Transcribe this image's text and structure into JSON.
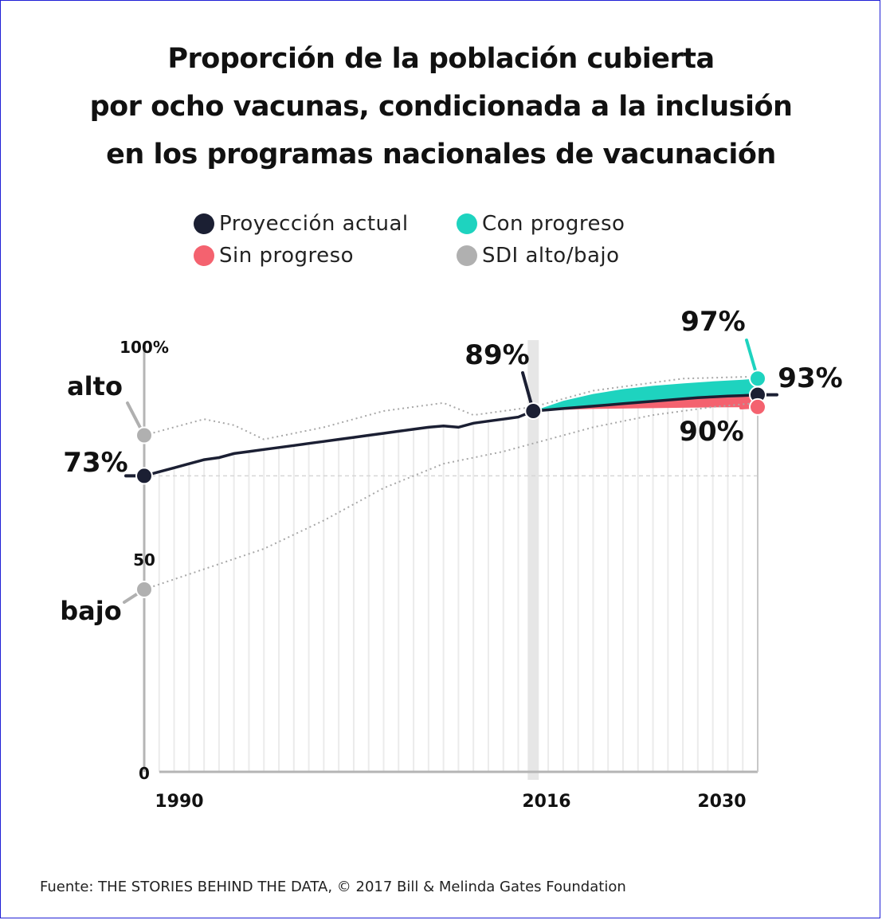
{
  "title_lines": [
    "Proporción de la población cubierta",
    "por ocho vacunas, condicionada a la inclusión",
    "en los programas nacionales de vacunación"
  ],
  "source": "Fuente: THE STORIES BEHIND THE DATA, © 2017 Bill & Melinda Gates Foundation",
  "colors": {
    "current": "#1b1f33",
    "progress": "#1ed3bf",
    "no_progress": "#f4626f",
    "sdi": "#b0b0b0"
  },
  "chart_data": {
    "type": "line",
    "title": "Proporción de la población cubierta por ocho vacunas, condicionada a la inclusión en los programas nacionales de vacunación",
    "xlabel": "",
    "ylabel": "",
    "xlim": [
      1990,
      2031
    ],
    "ylim": [
      0,
      100
    ],
    "x_ticks": [
      "1990",
      "2016",
      "2030"
    ],
    "y_ticks": [
      "0",
      "50",
      "100%"
    ],
    "legend": {
      "placement": "top",
      "entries": [
        "Proyección actual",
        "Con progreso",
        "Sin progreso",
        "SDI alto/bajo"
      ]
    },
    "series": [
      {
        "name": "Proyección actual",
        "x": [
          1990,
          1991,
          1992,
          1993,
          1994,
          1995,
          1996,
          1997,
          1998,
          1999,
          2000,
          2001,
          2002,
          2003,
          2004,
          2005,
          2006,
          2007,
          2008,
          2009,
          2010,
          2011,
          2012,
          2013,
          2014,
          2015,
          2016,
          2017,
          2018,
          2019,
          2020,
          2021,
          2022,
          2023,
          2024,
          2025,
          2026,
          2027,
          2028,
          2029,
          2030,
          2031
        ],
        "values": [
          73,
          74,
          75,
          76,
          77,
          77.5,
          78.5,
          79,
          79.5,
          80,
          80.5,
          81,
          81.5,
          82,
          82.5,
          83,
          83.5,
          84,
          84.5,
          85,
          85.3,
          85,
          86,
          86.5,
          87,
          87.5,
          89,
          89.3,
          89.6,
          89.9,
          90.2,
          90.5,
          90.8,
          91.1,
          91.4,
          91.7,
          92,
          92.3,
          92.5,
          92.7,
          92.8,
          93
        ]
      },
      {
        "name": "Con progreso",
        "x": [
          2016,
          2018,
          2020,
          2022,
          2024,
          2026,
          2028,
          2030,
          2031
        ],
        "values": [
          89,
          91.5,
          93.2,
          94.4,
          95.2,
          95.8,
          96.3,
          96.7,
          97
        ]
      },
      {
        "name": "Sin progreso",
        "x": [
          2016,
          2018,
          2020,
          2022,
          2024,
          2026,
          2028,
          2030,
          2031
        ],
        "values": [
          89,
          89.3,
          89.5,
          89.6,
          89.7,
          89.8,
          89.9,
          89.95,
          90
        ]
      },
      {
        "name": "SDI alto",
        "x": [
          1990,
          1994,
          1996,
          1998,
          2002,
          2006,
          2010,
          2012,
          2016,
          2020,
          2026,
          2031
        ],
        "values": [
          83,
          87,
          85.5,
          82,
          85,
          89,
          91,
          88,
          90,
          94,
          97,
          97.5
        ]
      },
      {
        "name": "SDI bajo",
        "x": [
          1990,
          1994,
          1998,
          2002,
          2006,
          2010,
          2014,
          2016,
          2020,
          2024,
          2028,
          2031
        ],
        "values": [
          45,
          50,
          55,
          62,
          70,
          76,
          79,
          81,
          85,
          88,
          90,
          91
        ]
      }
    ],
    "annotations": [
      {
        "text": "73%",
        "x": 1990,
        "y": 73
      },
      {
        "text": "89%",
        "x": 2016,
        "y": 89
      },
      {
        "text": "93%",
        "x": 2031,
        "y": 93
      },
      {
        "text": "97%",
        "x": 2031,
        "y": 97
      },
      {
        "text": "90%",
        "x": 2031,
        "y": 90
      },
      {
        "text": "alto",
        "x": 1990,
        "y": 83
      },
      {
        "text": "bajo",
        "x": 1990,
        "y": 45
      }
    ]
  }
}
